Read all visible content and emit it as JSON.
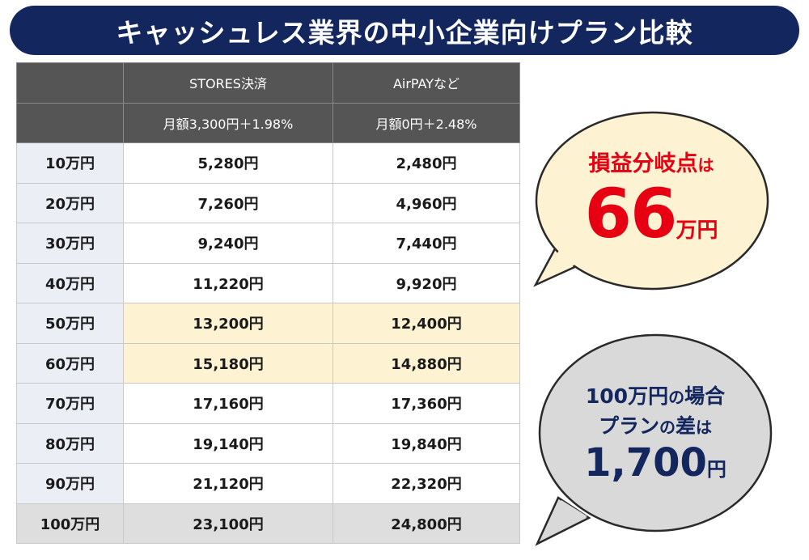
{
  "title": "キャッシュレス業界の中小企業向けプラン比較",
  "table": {
    "headers": [
      "",
      "STORES決済",
      "AirPAYなど"
    ],
    "subheaders": [
      "",
      "月額3,300円＋1.98%",
      "月額0円＋2.48%"
    ],
    "rows": [
      {
        "label": "10万円",
        "a": "5,280円",
        "b": "2,480円",
        "highlight": false
      },
      {
        "label": "20万円",
        "a": "7,260円",
        "b": "4,960円",
        "highlight": false
      },
      {
        "label": "30万円",
        "a": "9,240円",
        "b": "7,440円",
        "highlight": false
      },
      {
        "label": "40万円",
        "a": "11,220円",
        "b": "9,920円",
        "highlight": false
      },
      {
        "label": "50万円",
        "a": "13,200円",
        "b": "12,400円",
        "highlight": true
      },
      {
        "label": "60万円",
        "a": "15,180円",
        "b": "14,880円",
        "highlight": true
      },
      {
        "label": "70万円",
        "a": "17,160円",
        "b": "17,360円",
        "highlight": false
      },
      {
        "label": "80万円",
        "a": "19,140円",
        "b": "19,840円",
        "highlight": false
      },
      {
        "label": "90万円",
        "a": "21,120円",
        "b": "22,320円",
        "highlight": false
      },
      {
        "label": "100万円",
        "a": "23,100円",
        "b": "24,800円",
        "highlight": false
      }
    ]
  },
  "bubble_breakeven": {
    "label": "損益分岐点",
    "particle": "は",
    "value": "66",
    "unit": "万円"
  },
  "bubble_difference": {
    "line1_a": "100万円",
    "line1_b": "の",
    "line1_c": "場合",
    "line2_a": "プラン",
    "line2_b": "の",
    "line2_c": "差",
    "line2_d": "は",
    "value": "1,700",
    "unit": "円"
  },
  "colors": {
    "navy": "#13265e",
    "red": "#e60012",
    "bubble1_fill": "#fdf3d3",
    "bubble2_fill": "#d9d9d9",
    "highlight_row": "#fdf3d3"
  }
}
